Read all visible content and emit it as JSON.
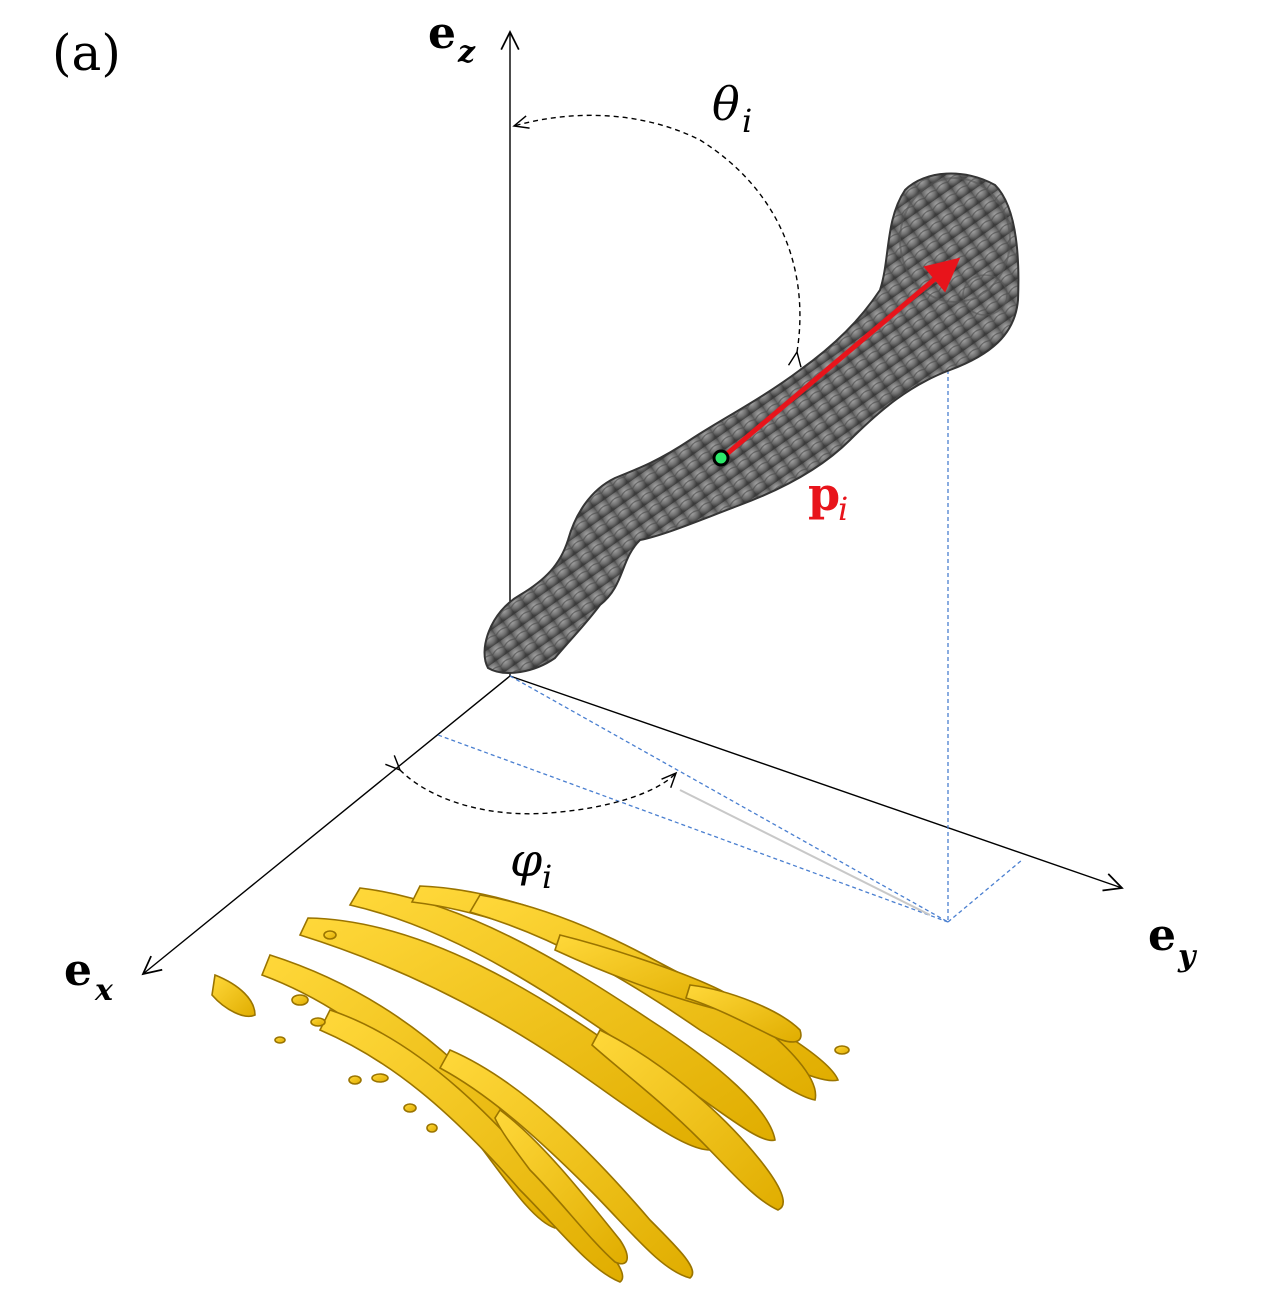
{
  "panel_label": "(a)",
  "axes": {
    "z": {
      "base": "e",
      "sub": "z"
    },
    "x": {
      "base": "e",
      "sub": "x"
    },
    "y": {
      "base": "e",
      "sub": "y"
    }
  },
  "angles": {
    "theta": {
      "symbol": "θ",
      "sub": "i"
    },
    "phi": {
      "symbol": "φ",
      "sub": "i"
    }
  },
  "vector": {
    "base": "p",
    "sub": "i",
    "color": "#e8141b"
  },
  "colors": {
    "axis": "#000000",
    "projection": "#4a7fd0",
    "particle": "#6b6b6b",
    "particle_dark": "#3e3e3e",
    "streaks": "#f2c214",
    "streaks_dark": "#a07a00",
    "center_dot": "#2ee86a"
  },
  "icons": [
    "dashed-arc-arrow-icon",
    "arrowhead-icon"
  ]
}
